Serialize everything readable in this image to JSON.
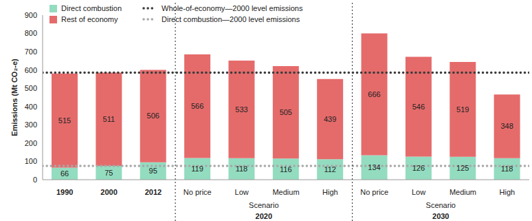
{
  "chart_data": {
    "type": "bar",
    "y_label": "Emissions (Mt CO₂-e)",
    "categories": [
      "1990",
      "2000",
      "2012",
      "No price",
      "Low",
      "Medium",
      "High",
      "No price",
      "Low",
      "Medium",
      "High"
    ],
    "groups": [
      {
        "caption": "Scenario",
        "label": "2020",
        "first": 3,
        "last": 6
      },
      {
        "caption": "Scenario",
        "label": "2030",
        "first": 7,
        "last": 10
      }
    ],
    "series": [
      {
        "name": "Direct combustion",
        "color": "#93dcc0",
        "values": [
          66,
          75,
          95,
          119,
          118,
          116,
          112,
          134,
          126,
          125,
          118
        ]
      },
      {
        "name": "Rest of economy",
        "color": "#e56b6b",
        "values": [
          515,
          511,
          506,
          566,
          533,
          505,
          439,
          666,
          546,
          519,
          348
        ]
      }
    ],
    "reference_lines": [
      {
        "name": "Whole-of-economy—2000 level emissions",
        "value": 586,
        "color": "#3a3a3a",
        "line_style": "dotted"
      },
      {
        "name": "Direct combustion—2000 level emissions",
        "value": 75,
        "color": "#a8a8a8",
        "line_style": "dotted"
      }
    ],
    "ylim": [
      0,
      900
    ],
    "yticks": [
      0,
      100,
      200,
      300,
      400,
      500,
      600,
      700,
      800,
      900
    ],
    "stacked": true,
    "data_labels": true,
    "legend": "upper left",
    "grid": false
  }
}
